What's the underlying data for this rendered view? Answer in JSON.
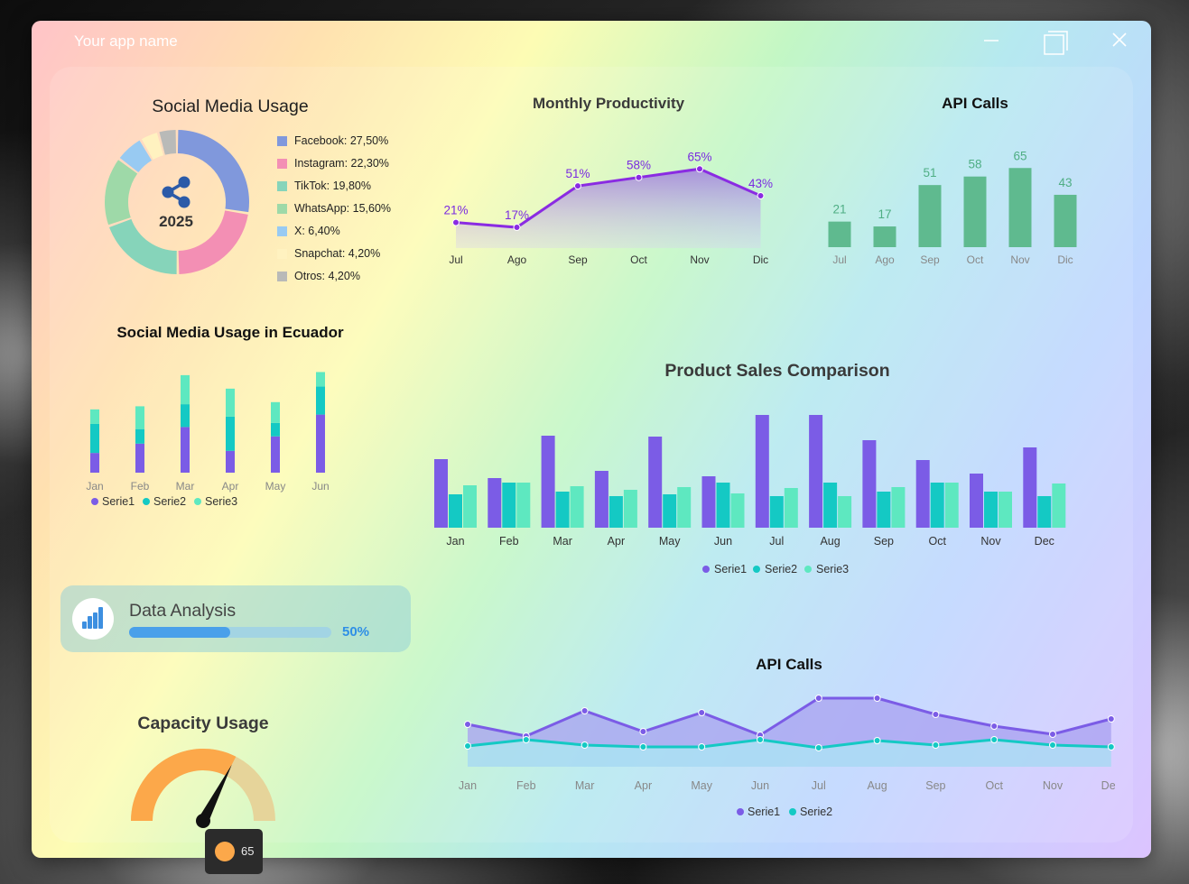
{
  "window": {
    "app_name": "Your app name"
  },
  "social_media": {
    "title": "Social Media Usage",
    "center_label": "2025",
    "legend": [
      {
        "label": "Facebook: 27,50%",
        "value": 27.5,
        "color": "#8098dc"
      },
      {
        "label": "Instagram: 22,30%",
        "value": 22.3,
        "color": "#f38fb4"
      },
      {
        "label": "TikTok: 19,80%",
        "value": 19.8,
        "color": "#86d4ba"
      },
      {
        "label": "WhatsApp: 15,60%",
        "value": 15.6,
        "color": "#9ed9a8"
      },
      {
        "label": "X: 6,40%",
        "value": 6.4,
        "color": "#98caf2"
      },
      {
        "label": "Snapchat: 4,20%",
        "value": 4.2,
        "color": "#fff2c0"
      },
      {
        "label": "Otros: 4,20%",
        "value": 4.2,
        "color": "#b9bab8"
      }
    ]
  },
  "monthly_productivity": {
    "title": "Monthly Productivity",
    "categories": [
      "Jul",
      "Ago",
      "Sep",
      "Oct",
      "Nov",
      "Dic"
    ],
    "values": [
      21,
      17,
      51,
      58,
      65,
      43
    ],
    "labels": [
      "21%",
      "17%",
      "51%",
      "58%",
      "65%",
      "43%"
    ]
  },
  "api_calls_bar": {
    "title": "API Calls",
    "categories": [
      "Jul",
      "Ago",
      "Sep",
      "Oct",
      "Nov",
      "Dic"
    ],
    "values": [
      21,
      17,
      51,
      58,
      65,
      43
    ],
    "labels": [
      "21",
      "17",
      "51",
      "58",
      "65",
      "43"
    ]
  },
  "ecuador": {
    "title": "Social Media Usage in Ecuador",
    "categories": [
      "Jan",
      "Feb",
      "Mar",
      "Apr",
      "May",
      "Jun"
    ],
    "serie1": [
      19,
      28,
      44,
      21,
      35,
      56
    ],
    "serie2": [
      28,
      14,
      22,
      33,
      13,
      27
    ],
    "serie3": [
      14,
      22,
      28,
      27,
      20,
      14
    ],
    "legend": [
      "Serie1",
      "Serie2",
      "Serie3"
    ]
  },
  "data_analysis": {
    "label": "Data Analysis",
    "percent_text": "50%",
    "progress": 0.5
  },
  "capacity": {
    "title": "Capacity Usage",
    "value": 65,
    "value_text": "65"
  },
  "product_sales": {
    "title": "Product Sales Comparison",
    "categories": [
      "Jan",
      "Feb",
      "Mar",
      "Apr",
      "May",
      "Jun",
      "Jul",
      "Aug",
      "Sep",
      "Oct",
      "Nov",
      "Dec"
    ],
    "serie1": [
      76,
      55,
      102,
      63,
      101,
      57,
      125,
      125,
      97,
      75,
      60,
      89
    ],
    "serie2": [
      37,
      50,
      40,
      35,
      37,
      50,
      35,
      50,
      40,
      50,
      40,
      35
    ],
    "serie3": [
      47,
      50,
      46,
      42,
      45,
      38,
      44,
      35,
      45,
      50,
      40,
      49
    ],
    "legend": [
      "Serie1",
      "Serie2",
      "Serie3"
    ]
  },
  "api_calls_line": {
    "title": "API Calls",
    "categories": [
      "Jan",
      "Feb",
      "Mar",
      "Apr",
      "May",
      "Jun",
      "Jul",
      "Aug",
      "Sep",
      "Oct",
      "Nov",
      "Dec"
    ],
    "serie1": [
      47,
      34,
      62,
      39,
      60,
      35,
      76,
      76,
      58,
      45,
      36,
      53
    ],
    "serie2": [
      23,
      30,
      24,
      22,
      22,
      30,
      21,
      29,
      24,
      30,
      24,
      22
    ],
    "legend": [
      "Serie1",
      "Serie2"
    ]
  },
  "colors": {
    "purple": "#7b5ce6",
    "teal": "#14c9c4",
    "mint": "#5ee8c0",
    "green_bar": "#5fba8f",
    "line_purple": "#8a2be2",
    "gauge_orange": "#fca84a",
    "gauge_track": "#e6d49a"
  }
}
